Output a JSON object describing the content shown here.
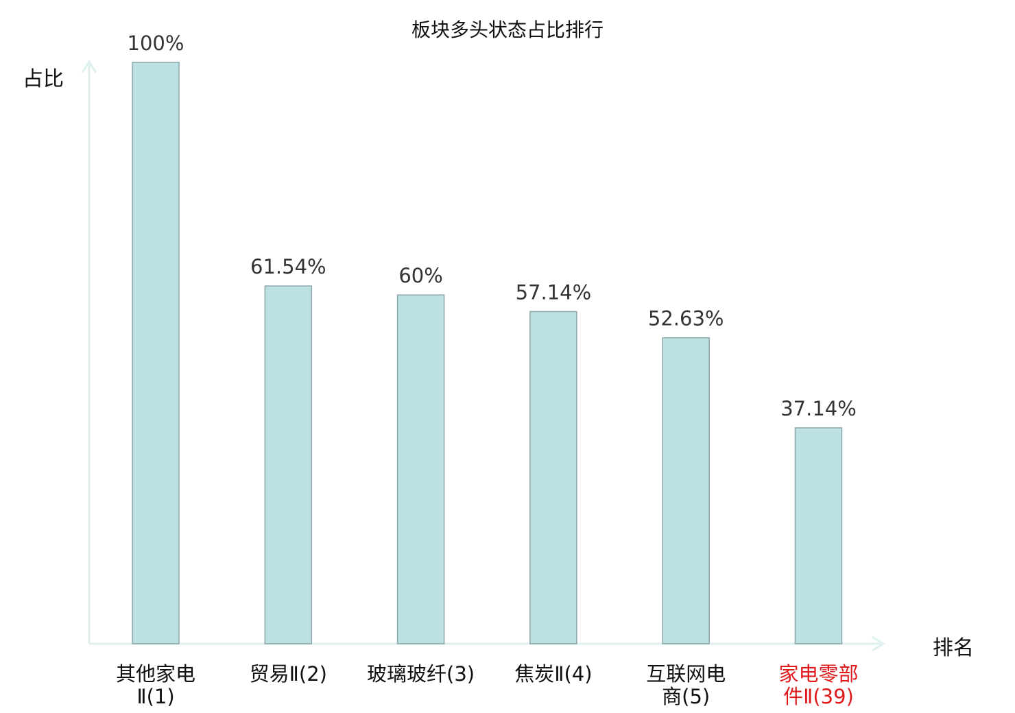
{
  "chart_data": {
    "type": "bar",
    "title": "板块多头状态占比排行",
    "ylabel": "占比",
    "xlabel": "排名",
    "categories": [
      [
        "其他家电",
        "Ⅱ(1)"
      ],
      [
        "贸易Ⅱ(2)"
      ],
      [
        "玻璃玻纤(3)"
      ],
      [
        "焦炭Ⅱ(4)"
      ],
      [
        "互联网电",
        "商(5)"
      ],
      [
        "家电零部",
        "件Ⅱ(39)"
      ]
    ],
    "values": [
      100,
      61.54,
      60,
      57.14,
      52.63,
      37.14
    ],
    "value_labels": [
      "100%",
      "61.54%",
      "60%",
      "57.14%",
      "52.63%",
      "37.14%"
    ],
    "highlight_index": 5,
    "ylim": [
      0,
      100
    ],
    "grid": false,
    "colors": {
      "bar_fill": "#bde0e3",
      "bar_stroke": "#8aa6aa",
      "axis": "#dff1ef",
      "label_text": "#111111",
      "value_text": "#333333",
      "highlight_text": "#e01a1a"
    }
  }
}
